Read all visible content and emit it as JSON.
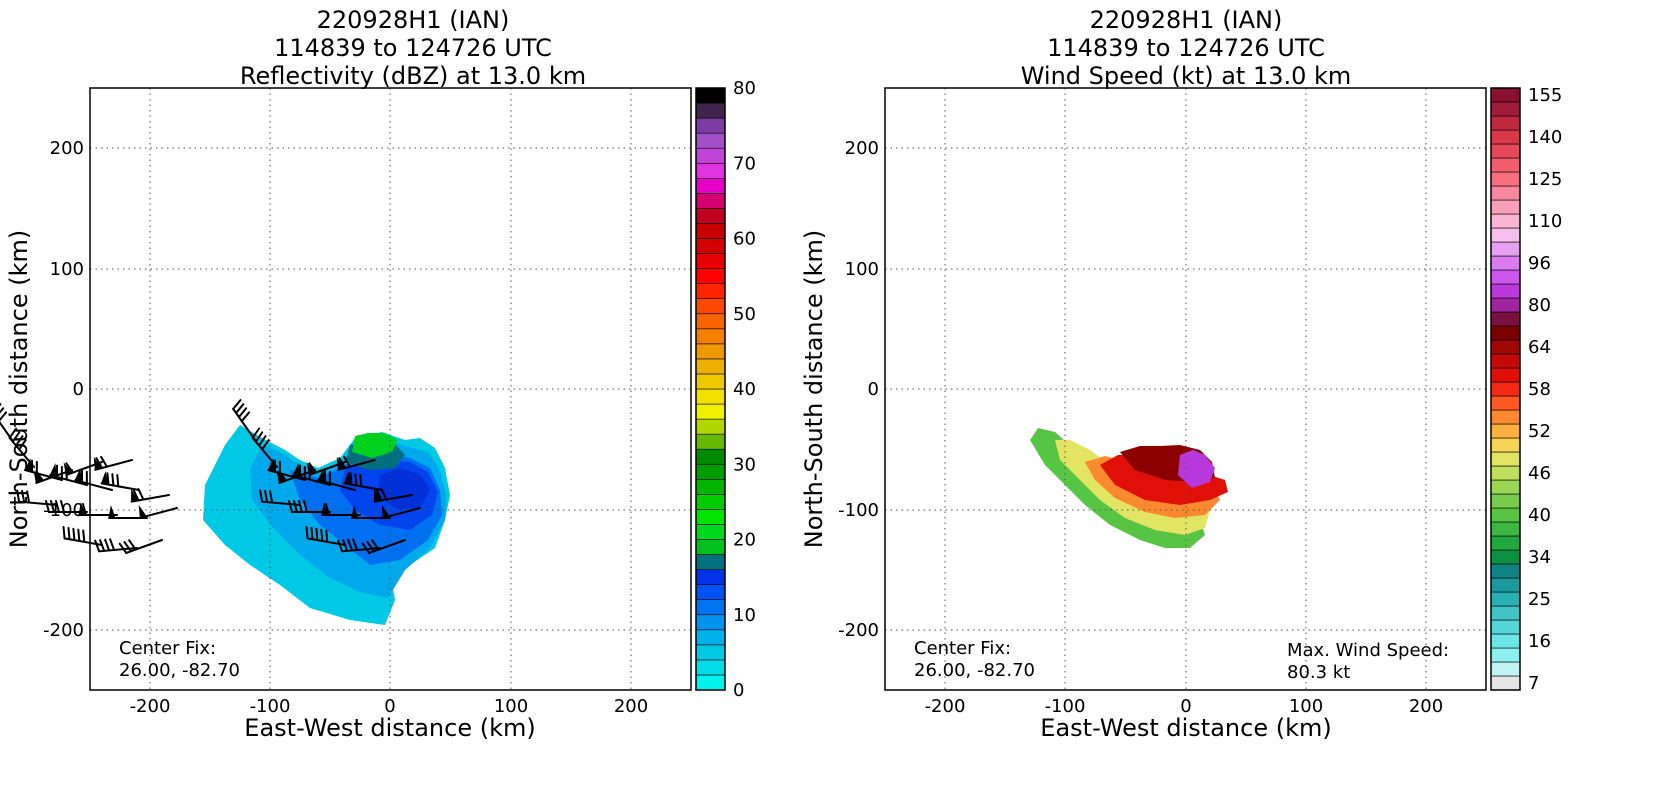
{
  "chart_data": [
    {
      "type": "heatmap",
      "title_lines": [
        "220928H1 (IAN)",
        "114839 to 124726 UTC",
        "Reflectivity (dBZ) at 13.0 km"
      ],
      "xlabel": "East-West distance (km)",
      "ylabel": "North-South distance (km)",
      "xlim": [
        -250,
        250
      ],
      "ylim": [
        -250,
        250
      ],
      "xticks": [
        -200,
        -100,
        0,
        100,
        200
      ],
      "yticks": [
        -200,
        -100,
        0,
        100,
        200
      ],
      "grid": true,
      "colorbar": {
        "label_ticks": [
          0,
          10,
          20,
          30,
          40,
          50,
          60,
          70,
          80
        ],
        "min": 0,
        "max": 80,
        "colors": [
          "#00f2ee",
          "#00dde8",
          "#00c9e6",
          "#00b2ea",
          "#0093ee",
          "#0073f0",
          "#0052f2",
          "#0032e8",
          "#006f80",
          "#00c020",
          "#00d820",
          "#00e400",
          "#00cc00",
          "#00b400",
          "#009c00",
          "#008a00",
          "#66b800",
          "#b2d600",
          "#f0f000",
          "#f4e000",
          "#eec800",
          "#eeb000",
          "#f09800",
          "#f48000",
          "#f86400",
          "#fc4800",
          "#ff2400",
          "#ff0000",
          "#e60000",
          "#d40000",
          "#c80000",
          "#c00020",
          "#d4006e",
          "#e800c8",
          "#e034e0",
          "#c044d8",
          "#a050c8",
          "#7c3ca4",
          "#40244c",
          "#000000"
        ]
      },
      "annotation": {
        "line1": "Center Fix:",
        "line2": "26.00, -82.70"
      }
    },
    {
      "type": "heatmap",
      "title_lines": [
        "220928H1 (IAN)",
        "114839 to 124726 UTC",
        "Wind Speed (kt) at 13.0 km"
      ],
      "xlabel": "East-West distance (km)",
      "ylabel": "North-South distance (km)",
      "xlim": [
        -250,
        250
      ],
      "ylim": [
        -250,
        250
      ],
      "xticks": [
        -200,
        -100,
        0,
        100,
        200
      ],
      "yticks": [
        -200,
        -100,
        0,
        100,
        200
      ],
      "grid": true,
      "colorbar": {
        "label_ticks": [
          "7",
          "16",
          "25",
          "34",
          "40",
          "46",
          "52",
          "58",
          "64",
          "80",
          "96",
          "110",
          "125",
          "140",
          "155"
        ],
        "colors": [
          "#e6e6e6",
          "#c0f4f4",
          "#8cf0f0",
          "#6ae6e6",
          "#54d6d6",
          "#40c4c4",
          "#2ab0b0",
          "#1a9a9a",
          "#108484",
          "#0a9040",
          "#20a840",
          "#3cb840",
          "#58c444",
          "#78cc4c",
          "#9ad654",
          "#bede5c",
          "#e2e464",
          "#f6d456",
          "#fcb040",
          "#fc8830",
          "#fc5a20",
          "#f42a14",
          "#e01008",
          "#c40a08",
          "#a00806",
          "#780000",
          "#7a1040",
          "#a024a0",
          "#bc38dc",
          "#cc56ec",
          "#da7cf0",
          "#e6a0f0",
          "#f2c0ea",
          "#f8b4d2",
          "#f8a0ba",
          "#f888a0",
          "#f87080",
          "#f25c6c",
          "#e64858",
          "#d83848",
          "#c02840",
          "#a01c38",
          "#8a1030"
        ]
      },
      "annotation": {
        "line1": "Center Fix:",
        "line2": "26.00, -82.70"
      },
      "max_wind": {
        "line1": "Max. Wind Speed:",
        "line2": "80.3 kt"
      }
    }
  ]
}
